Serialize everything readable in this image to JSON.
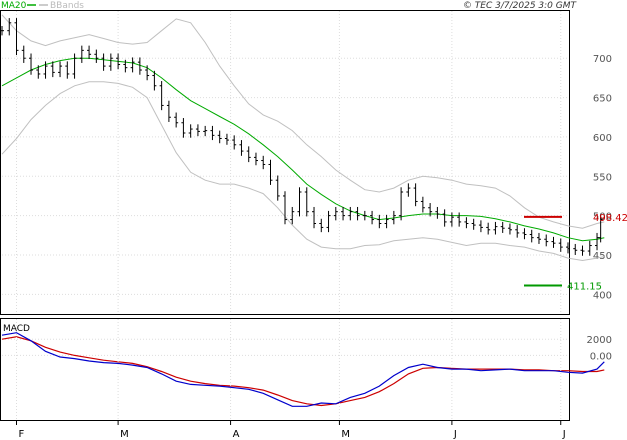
{
  "header": {
    "legend_ma20": "MA20",
    "legend_bbands": "BBands",
    "source": "© TEC 3/7/2025 3:0 GMT"
  },
  "colors": {
    "ma20": "#00aa00",
    "bbands": "#c0c0c0",
    "price": "#000000",
    "macd": "#0000cc",
    "signal": "#cc0000",
    "resistance": "#cc0000",
    "support": "#009900"
  },
  "chart_data": [
    {
      "type": "line",
      "subtype": "ohlc",
      "ylim": [
        375,
        760
      ],
      "yticks": [
        400,
        450,
        500,
        550,
        600,
        650,
        700
      ],
      "ytick_labels": [
        "400",
        "450",
        "500",
        "550",
        "600",
        "650",
        "700"
      ],
      "x_start": "2025-01-28",
      "x_end": "2025-07-03",
      "xtick_dates": [
        "2025-02-01",
        "2025-03-01",
        "2025-04-01",
        "2025-05-01",
        "2025-06-01",
        "2025-07-01"
      ],
      "xtick_labels": [
        "F",
        "M",
        "A",
        "M",
        "J",
        "J"
      ],
      "price_close": [
        [
          0,
          735
        ],
        [
          2,
          745
        ],
        [
          4,
          710
        ],
        [
          6,
          700
        ],
        [
          8,
          685
        ],
        [
          10,
          680
        ],
        [
          12,
          690
        ],
        [
          14,
          682
        ],
        [
          16,
          690
        ],
        [
          18,
          680
        ],
        [
          20,
          700
        ],
        [
          22,
          710
        ],
        [
          24,
          705
        ],
        [
          26,
          700
        ],
        [
          28,
          690
        ],
        [
          30,
          700
        ],
        [
          32,
          692
        ],
        [
          34,
          688
        ],
        [
          36,
          695
        ],
        [
          38,
          685
        ],
        [
          40,
          678
        ],
        [
          42,
          665
        ],
        [
          44,
          640
        ],
        [
          46,
          625
        ],
        [
          48,
          618
        ],
        [
          50,
          605
        ],
        [
          52,
          610
        ],
        [
          54,
          607
        ],
        [
          56,
          608
        ],
        [
          58,
          602
        ],
        [
          60,
          598
        ],
        [
          62,
          596
        ],
        [
          64,
          590
        ],
        [
          66,
          582
        ],
        [
          68,
          574
        ],
        [
          70,
          570
        ],
        [
          72,
          565
        ],
        [
          74,
          545
        ],
        [
          76,
          525
        ],
        [
          78,
          495
        ],
        [
          80,
          505
        ],
        [
          82,
          530
        ],
        [
          84,
          505
        ],
        [
          86,
          490
        ],
        [
          88,
          485
        ],
        [
          90,
          500
        ],
        [
          92,
          505
        ],
        [
          94,
          500
        ],
        [
          96,
          505
        ],
        [
          98,
          500
        ],
        [
          100,
          500
        ],
        [
          102,
          495
        ],
        [
          104,
          490
        ],
        [
          106,
          495
        ],
        [
          108,
          500
        ],
        [
          110,
          530
        ],
        [
          112,
          535
        ],
        [
          114,
          518
        ],
        [
          116,
          510
        ],
        [
          118,
          505
        ],
        [
          120,
          502
        ],
        [
          122,
          492
        ],
        [
          124,
          498
        ],
        [
          126,
          492
        ],
        [
          128,
          490
        ],
        [
          130,
          488
        ],
        [
          132,
          485
        ],
        [
          134,
          482
        ],
        [
          136,
          486
        ],
        [
          138,
          484
        ],
        [
          140,
          482
        ],
        [
          142,
          478
        ],
        [
          144,
          476
        ],
        [
          146,
          472
        ],
        [
          148,
          470
        ],
        [
          150,
          467
        ],
        [
          152,
          465
        ],
        [
          154,
          460
        ],
        [
          156,
          458
        ],
        [
          158,
          456
        ],
        [
          160,
          455
        ],
        [
          162,
          462
        ],
        [
          164,
          472
        ],
        [
          165,
          495
        ]
      ],
      "ma20": [
        [
          0,
          665
        ],
        [
          4,
          675
        ],
        [
          8,
          685
        ],
        [
          12,
          692
        ],
        [
          16,
          697
        ],
        [
          20,
          700
        ],
        [
          24,
          700
        ],
        [
          28,
          698
        ],
        [
          32,
          696
        ],
        [
          36,
          694
        ],
        [
          40,
          688
        ],
        [
          44,
          675
        ],
        [
          48,
          660
        ],
        [
          52,
          646
        ],
        [
          56,
          636
        ],
        [
          60,
          626
        ],
        [
          64,
          616
        ],
        [
          68,
          604
        ],
        [
          72,
          590
        ],
        [
          76,
          575
        ],
        [
          80,
          558
        ],
        [
          84,
          540
        ],
        [
          88,
          527
        ],
        [
          92,
          515
        ],
        [
          96,
          506
        ],
        [
          100,
          500
        ],
        [
          104,
          495
        ],
        [
          108,
          497
        ],
        [
          112,
          500
        ],
        [
          116,
          502
        ],
        [
          120,
          502
        ],
        [
          124,
          500
        ],
        [
          128,
          500
        ],
        [
          132,
          499
        ],
        [
          136,
          496
        ],
        [
          140,
          492
        ],
        [
          144,
          487
        ],
        [
          148,
          483
        ],
        [
          152,
          478
        ],
        [
          156,
          472
        ],
        [
          160,
          468
        ],
        [
          164,
          470
        ],
        [
          166,
          472
        ]
      ],
      "bb_upper": [
        [
          0,
          755
        ],
        [
          4,
          735
        ],
        [
          8,
          722
        ],
        [
          12,
          716
        ],
        [
          16,
          722
        ],
        [
          20,
          726
        ],
        [
          24,
          730
        ],
        [
          28,
          725
        ],
        [
          32,
          720
        ],
        [
          36,
          718
        ],
        [
          40,
          720
        ],
        [
          44,
          735
        ],
        [
          48,
          750
        ],
        [
          52,
          745
        ],
        [
          56,
          720
        ],
        [
          60,
          690
        ],
        [
          64,
          665
        ],
        [
          68,
          642
        ],
        [
          72,
          628
        ],
        [
          76,
          620
        ],
        [
          80,
          608
        ],
        [
          84,
          590
        ],
        [
          88,
          575
        ],
        [
          92,
          558
        ],
        [
          96,
          545
        ],
        [
          100,
          533
        ],
        [
          104,
          530
        ],
        [
          108,
          535
        ],
        [
          112,
          545
        ],
        [
          116,
          550
        ],
        [
          120,
          548
        ],
        [
          124,
          545
        ],
        [
          128,
          540
        ],
        [
          132,
          538
        ],
        [
          136,
          535
        ],
        [
          140,
          525
        ],
        [
          144,
          510
        ],
        [
          148,
          498
        ],
        [
          152,
          492
        ],
        [
          156,
          487
        ],
        [
          160,
          484
        ],
        [
          164,
          490
        ],
        [
          166,
          492
        ]
      ],
      "bb_lower": [
        [
          0,
          578
        ],
        [
          4,
          598
        ],
        [
          8,
          622
        ],
        [
          12,
          640
        ],
        [
          16,
          655
        ],
        [
          20,
          665
        ],
        [
          24,
          670
        ],
        [
          28,
          670
        ],
        [
          32,
          668
        ],
        [
          36,
          663
        ],
        [
          40,
          650
        ],
        [
          44,
          615
        ],
        [
          48,
          580
        ],
        [
          52,
          555
        ],
        [
          56,
          545
        ],
        [
          60,
          540
        ],
        [
          64,
          540
        ],
        [
          68,
          535
        ],
        [
          72,
          528
        ],
        [
          76,
          510
        ],
        [
          80,
          488
        ],
        [
          84,
          470
        ],
        [
          88,
          460
        ],
        [
          92,
          458
        ],
        [
          96,
          458
        ],
        [
          100,
          462
        ],
        [
          104,
          463
        ],
        [
          108,
          468
        ],
        [
          112,
          470
        ],
        [
          116,
          472
        ],
        [
          120,
          470
        ],
        [
          124,
          466
        ],
        [
          128,
          462
        ],
        [
          132,
          465
        ],
        [
          136,
          465
        ],
        [
          140,
          462
        ],
        [
          144,
          460
        ],
        [
          148,
          455
        ],
        [
          152,
          452
        ],
        [
          156,
          446
        ],
        [
          160,
          443
        ],
        [
          164,
          446
        ],
        [
          166,
          448
        ]
      ],
      "resistance": {
        "value": 498.42,
        "label": "498.42"
      },
      "support": {
        "value": 411.15,
        "label": "411.15"
      }
    },
    {
      "type": "line",
      "title": "MACD",
      "ylim": [
        -8000,
        4500
      ],
      "yticks": [
        2000,
        0
      ],
      "ytick_labels": [
        "2000",
        "0.00"
      ],
      "macd": [
        [
          0,
          2500
        ],
        [
          4,
          2800
        ],
        [
          8,
          1800
        ],
        [
          12,
          500
        ],
        [
          16,
          -200
        ],
        [
          20,
          -400
        ],
        [
          24,
          -700
        ],
        [
          28,
          -900
        ],
        [
          32,
          -1000
        ],
        [
          36,
          -1200
        ],
        [
          40,
          -1500
        ],
        [
          44,
          -2300
        ],
        [
          48,
          -3200
        ],
        [
          52,
          -3600
        ],
        [
          56,
          -3700
        ],
        [
          60,
          -3800
        ],
        [
          64,
          -4000
        ],
        [
          68,
          -4200
        ],
        [
          72,
          -4700
        ],
        [
          76,
          -5500
        ],
        [
          80,
          -6300
        ],
        [
          84,
          -6300
        ],
        [
          88,
          -5900
        ],
        [
          92,
          -6000
        ],
        [
          96,
          -5200
        ],
        [
          100,
          -4700
        ],
        [
          104,
          -3800
        ],
        [
          108,
          -2500
        ],
        [
          112,
          -1500
        ],
        [
          116,
          -1100
        ],
        [
          120,
          -1500
        ],
        [
          124,
          -1700
        ],
        [
          128,
          -1700
        ],
        [
          132,
          -1900
        ],
        [
          136,
          -1800
        ],
        [
          140,
          -1700
        ],
        [
          144,
          -1900
        ],
        [
          148,
          -1900
        ],
        [
          152,
          -1900
        ],
        [
          156,
          -2100
        ],
        [
          160,
          -2200
        ],
        [
          164,
          -1700
        ],
        [
          166,
          -800
        ]
      ],
      "signal": [
        [
          0,
          2000
        ],
        [
          4,
          2300
        ],
        [
          8,
          1800
        ],
        [
          12,
          1000
        ],
        [
          16,
          400
        ],
        [
          20,
          0
        ],
        [
          24,
          -300
        ],
        [
          28,
          -600
        ],
        [
          32,
          -800
        ],
        [
          36,
          -1000
        ],
        [
          40,
          -1400
        ],
        [
          44,
          -2000
        ],
        [
          48,
          -2700
        ],
        [
          52,
          -3200
        ],
        [
          56,
          -3500
        ],
        [
          60,
          -3700
        ],
        [
          64,
          -3800
        ],
        [
          68,
          -4000
        ],
        [
          72,
          -4300
        ],
        [
          76,
          -4900
        ],
        [
          80,
          -5600
        ],
        [
          84,
          -6000
        ],
        [
          88,
          -6200
        ],
        [
          92,
          -6000
        ],
        [
          96,
          -5600
        ],
        [
          100,
          -5200
        ],
        [
          104,
          -4500
        ],
        [
          108,
          -3500
        ],
        [
          112,
          -2300
        ],
        [
          116,
          -1600
        ],
        [
          120,
          -1500
        ],
        [
          124,
          -1600
        ],
        [
          128,
          -1700
        ],
        [
          132,
          -1700
        ],
        [
          136,
          -1700
        ],
        [
          140,
          -1700
        ],
        [
          144,
          -1800
        ],
        [
          148,
          -1800
        ],
        [
          152,
          -1900
        ],
        [
          156,
          -1900
        ],
        [
          160,
          -2000
        ],
        [
          164,
          -2000
        ],
        [
          166,
          -1800
        ]
      ]
    }
  ]
}
